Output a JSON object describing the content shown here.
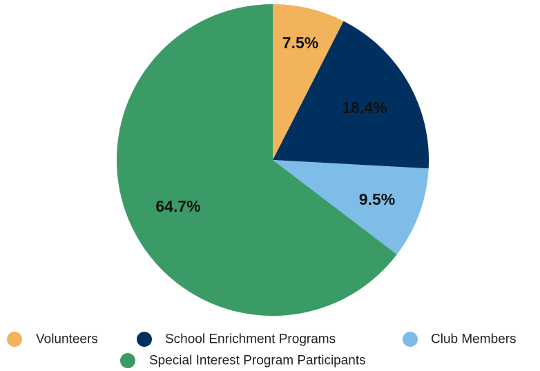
{
  "chart_data": {
    "type": "pie",
    "title": "",
    "legend_position": "bottom",
    "start_angle_deg": 0,
    "direction": "clockwise",
    "slices": [
      {
        "name": "Volunteers",
        "value": 7.5,
        "label": "7.5%",
        "color": "#F2B35B"
      },
      {
        "name": "School Enrichment Programs",
        "value": 18.4,
        "label": "18.4%",
        "color": "#00305F"
      },
      {
        "name": "Club Members",
        "value": 9.5,
        "label": "9.5%",
        "color": "#7DBDE8"
      },
      {
        "name": "Special Interest Program Participants",
        "value": 64.7,
        "label": "64.7%",
        "color": "#3A9B67"
      }
    ]
  }
}
